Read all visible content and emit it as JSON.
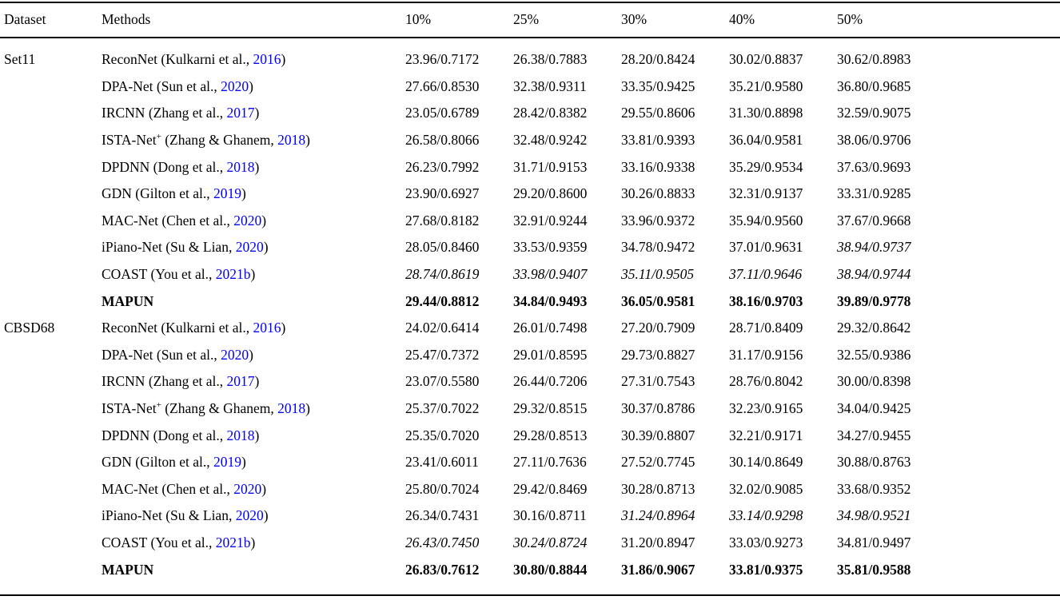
{
  "page": {
    "background": "#ffffff",
    "text_color": "#000000",
    "citation_color": "#0000ff"
  },
  "table": {
    "headers": [
      "Dataset",
      "Methods",
      "10%",
      "25%",
      "30%",
      "40%",
      "50%"
    ],
    "value_format": "PSNR/SSIM",
    "groups": [
      {
        "dataset": "Set11",
        "rows": [
          {
            "method": {
              "name": "ReconNet",
              "sup": "",
              "cite": "Kulkarni et al.,",
              "year": "2016"
            },
            "bold": false,
            "values": [
              "23.96/0.7172",
              "26.38/0.7883",
              "28.20/0.8424",
              "30.02/0.8837",
              "30.62/0.8983"
            ],
            "value_styles": [
              "n",
              "n",
              "n",
              "n",
              "n"
            ]
          },
          {
            "method": {
              "name": "DPA-Net",
              "sup": "",
              "cite": "Sun et al.,",
              "year": "2020"
            },
            "bold": false,
            "values": [
              "27.66/0.8530",
              "32.38/0.9311",
              "33.35/0.9425",
              "35.21/0.9580",
              "36.80/0.9685"
            ],
            "value_styles": [
              "n",
              "n",
              "n",
              "n",
              "n"
            ]
          },
          {
            "method": {
              "name": "IRCNN",
              "sup": "",
              "cite": "Zhang et al.,",
              "year": "2017"
            },
            "bold": false,
            "values": [
              "23.05/0.6789",
              "28.42/0.8382",
              "29.55/0.8606",
              "31.30/0.8898",
              "32.59/0.9075"
            ],
            "value_styles": [
              "n",
              "n",
              "n",
              "n",
              "n"
            ]
          },
          {
            "method": {
              "name": "ISTA-Net",
              "sup": "+",
              "cite": "Zhang & Ghanem,",
              "year": "2018"
            },
            "bold": false,
            "values": [
              "26.58/0.8066",
              "32.48/0.9242",
              "33.81/0.9393",
              "36.04/0.9581",
              "38.06/0.9706"
            ],
            "value_styles": [
              "n",
              "n",
              "n",
              "n",
              "n"
            ]
          },
          {
            "method": {
              "name": "DPDNN",
              "sup": "",
              "cite": "Dong et al.,",
              "year": "2018"
            },
            "bold": false,
            "values": [
              "26.23/0.7992",
              "31.71/0.9153",
              "33.16/0.9338",
              "35.29/0.9534",
              "37.63/0.9693"
            ],
            "value_styles": [
              "n",
              "n",
              "n",
              "n",
              "n"
            ]
          },
          {
            "method": {
              "name": "GDN",
              "sup": "",
              "cite": "Gilton et al.,",
              "year": "2019"
            },
            "bold": false,
            "values": [
              "23.90/0.6927",
              "29.20/0.8600",
              "30.26/0.8833",
              "32.31/0.9137",
              "33.31/0.9285"
            ],
            "value_styles": [
              "n",
              "n",
              "n",
              "n",
              "n"
            ]
          },
          {
            "method": {
              "name": "MAC-Net",
              "sup": "",
              "cite": "Chen et al.,",
              "year": "2020"
            },
            "bold": false,
            "values": [
              "27.68/0.8182",
              "32.91/0.9244",
              "33.96/0.9372",
              "35.94/0.9560",
              "37.67/0.9668"
            ],
            "value_styles": [
              "n",
              "n",
              "n",
              "n",
              "n"
            ]
          },
          {
            "method": {
              "name": "iPiano-Net",
              "sup": "",
              "cite": "Su & Lian,",
              "year": "2020"
            },
            "bold": false,
            "values": [
              "28.05/0.8460",
              "33.53/0.9359",
              "34.78/0.9472",
              "37.01/0.9631",
              "38.94/0.9737"
            ],
            "value_styles": [
              "n",
              "n",
              "n",
              "n",
              "i"
            ]
          },
          {
            "method": {
              "name": "COAST",
              "sup": "",
              "cite": "You et al.,",
              "year": "2021b"
            },
            "bold": false,
            "values": [
              "28.74/0.8619",
              "33.98/0.9407",
              "35.11/0.9505",
              "37.11/0.9646",
              "38.94/0.9744"
            ],
            "value_styles": [
              "i",
              "i",
              "i",
              "i",
              "i"
            ]
          },
          {
            "method": {
              "name": "MAPUN",
              "sup": "",
              "cite": "",
              "year": ""
            },
            "bold": true,
            "values": [
              "29.44/0.8812",
              "34.84/0.9493",
              "36.05/0.9581",
              "38.16/0.9703",
              "39.89/0.9778"
            ],
            "value_styles": [
              "b",
              "b",
              "b",
              "b",
              "b"
            ]
          }
        ]
      },
      {
        "dataset": "CBSD68",
        "rows": [
          {
            "method": {
              "name": "ReconNet",
              "sup": "",
              "cite": "Kulkarni et al.,",
              "year": "2016"
            },
            "bold": false,
            "values": [
              "24.02/0.6414",
              "26.01/0.7498",
              "27.20/0.7909",
              "28.71/0.8409",
              "29.32/0.8642"
            ],
            "value_styles": [
              "n",
              "n",
              "n",
              "n",
              "n"
            ]
          },
          {
            "method": {
              "name": "DPA-Net",
              "sup": "",
              "cite": "Sun et al.,",
              "year": "2020"
            },
            "bold": false,
            "values": [
              "25.47/0.7372",
              "29.01/0.8595",
              "29.73/0.8827",
              "31.17/0.9156",
              "32.55/0.9386"
            ],
            "value_styles": [
              "n",
              "n",
              "n",
              "n",
              "n"
            ]
          },
          {
            "method": {
              "name": "IRCNN",
              "sup": "",
              "cite": "Zhang et al.,",
              "year": "2017"
            },
            "bold": false,
            "values": [
              "23.07/0.5580",
              "26.44/0.7206",
              "27.31/0.7543",
              "28.76/0.8042",
              "30.00/0.8398"
            ],
            "value_styles": [
              "n",
              "n",
              "n",
              "n",
              "n"
            ]
          },
          {
            "method": {
              "name": "ISTA-Net",
              "sup": "+",
              "cite": "Zhang & Ghanem,",
              "year": "2018"
            },
            "bold": false,
            "values": [
              "25.37/0.7022",
              "29.32/0.8515",
              "30.37/0.8786",
              "32.23/0.9165",
              "34.04/0.9425"
            ],
            "value_styles": [
              "n",
              "n",
              "n",
              "n",
              "n"
            ]
          },
          {
            "method": {
              "name": "DPDNN",
              "sup": "",
              "cite": "Dong et al.,",
              "year": "2018"
            },
            "bold": false,
            "values": [
              "25.35/0.7020",
              "29.28/0.8513",
              "30.39/0.8807",
              "32.21/0.9171",
              "34.27/0.9455"
            ],
            "value_styles": [
              "n",
              "n",
              "n",
              "n",
              "n"
            ]
          },
          {
            "method": {
              "name": "GDN",
              "sup": "",
              "cite": "Gilton et al.,",
              "year": "2019"
            },
            "bold": false,
            "values": [
              "23.41/0.6011",
              "27.11/0.7636",
              "27.52/0.7745",
              "30.14/0.8649",
              "30.88/0.8763"
            ],
            "value_styles": [
              "n",
              "n",
              "n",
              "n",
              "n"
            ]
          },
          {
            "method": {
              "name": "MAC-Net",
              "sup": "",
              "cite": "Chen et al.,",
              "year": "2020"
            },
            "bold": false,
            "values": [
              "25.80/0.7024",
              "29.42/0.8469",
              "30.28/0.8713",
              "32.02/0.9085",
              "33.68/0.9352"
            ],
            "value_styles": [
              "n",
              "n",
              "n",
              "n",
              "n"
            ]
          },
          {
            "method": {
              "name": "iPiano-Net",
              "sup": "",
              "cite": "Su & Lian,",
              "year": "2020"
            },
            "bold": false,
            "values": [
              "26.34/0.7431",
              "30.16/0.8711",
              "31.24/0.8964",
              "33.14/0.9298",
              "34.98/0.9521"
            ],
            "value_styles": [
              "n",
              "n",
              "i",
              "i",
              "i"
            ]
          },
          {
            "method": {
              "name": "COAST",
              "sup": "",
              "cite": "You et al.,",
              "year": "2021b"
            },
            "bold": false,
            "values": [
              "26.43/0.7450",
              "30.24/0.8724",
              "31.20/0.8947",
              "33.03/0.9273",
              "34.81/0.9497"
            ],
            "value_styles": [
              "i",
              "i",
              "n",
              "n",
              "n"
            ]
          },
          {
            "method": {
              "name": "MAPUN",
              "sup": "",
              "cite": "",
              "year": ""
            },
            "bold": true,
            "values": [
              "26.83/0.7612",
              "30.80/0.8844",
              "31.86/0.9067",
              "33.81/0.9375",
              "35.81/0.9588"
            ],
            "value_styles": [
              "b",
              "b",
              "b",
              "b",
              "b"
            ]
          }
        ]
      }
    ]
  }
}
